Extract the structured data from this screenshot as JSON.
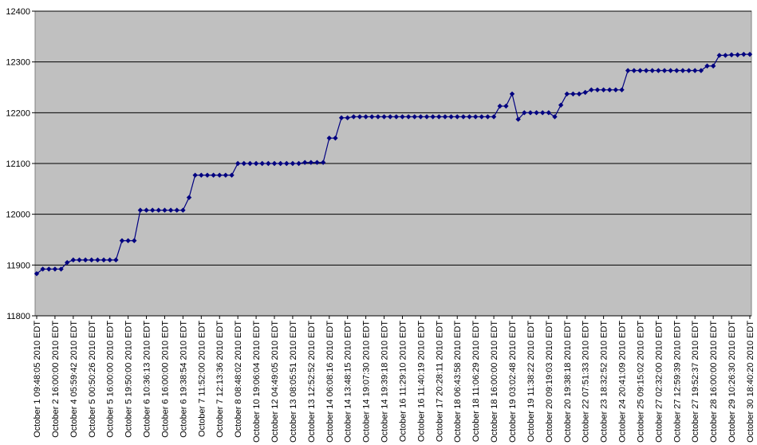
{
  "chart_data": {
    "type": "line",
    "categories": [
      "October 1 09:48:05 2010 EDT",
      null,
      null,
      "October 2 16:00:00 2010 EDT",
      null,
      null,
      "October 4 05:59:42 2010 EDT",
      null,
      null,
      "October 5 00:50:26 2010 EDT",
      null,
      null,
      "October 5 16:00:00 2010 EDT",
      null,
      null,
      "October 5 19:50:00 2010 EDT",
      null,
      null,
      "October 6 10:36:13 2010 EDT",
      null,
      null,
      "October 6 16:00:00 2010 EDT",
      null,
      null,
      "October 6 19:38:54 2010 EDT",
      null,
      null,
      "October 7 11:52:00 2010 EDT",
      null,
      null,
      "October 7 12:13:36 2010 EDT",
      null,
      null,
      "October 8 08:48:02 2010 EDT",
      null,
      null,
      "October 10 19:06:04 2010 EDT",
      null,
      null,
      "October 12 04:49:05 2010 EDT",
      null,
      null,
      "October 13 08:05:51 2010 EDT",
      null,
      null,
      "October 13 12:52:52 2010 EDT",
      null,
      null,
      "October 14 06:08:16 2010 EDT",
      null,
      null,
      "October 14 13:48:15 2010 EDT",
      null,
      null,
      "October 14 19:07:30 2010 EDT",
      null,
      null,
      "October 14 19:39:18 2010 EDT",
      null,
      null,
      "October 16 11:29:10 2010 EDT",
      null,
      null,
      "October 16 11:40:19 2010 EDT",
      null,
      null,
      "October 17 20:28:11 2010 EDT",
      null,
      null,
      "October 18 06:43:58 2010 EDT",
      null,
      null,
      "October 18 11:06:29 2010 EDT",
      null,
      null,
      "October 18 16:00:00 2010 EDT",
      null,
      null,
      "October 19 03:02:48 2010 EDT",
      null,
      null,
      "October 19 11:38:22 2010 EDT",
      null,
      null,
      "October 20 09:19:03 2010 EDT",
      null,
      null,
      "October 20 19:38:18 2010 EDT",
      null,
      null,
      "October 22 07:51:33 2010 EDT",
      null,
      null,
      "October 23 18:32:52 2010 EDT",
      null,
      null,
      "October 24 20:41:09 2010 EDT",
      null,
      null,
      "October 25 09:15:02 2010 EDT",
      null,
      null,
      "October 27 02:32:00 2010 EDT",
      null,
      null,
      "October 27 12:59:39 2010 EDT",
      null,
      null,
      "October 27 19:52:37 2010 EDT",
      null,
      null,
      "October 28 16:00:00 2010 EDT",
      null,
      null,
      "October 29 10:26:30 2010 EDT",
      null,
      null,
      "October 30 18:40:20 2010 EDT"
    ],
    "values": [
      11883,
      11892,
      11892,
      11892,
      11892,
      11905,
      11910,
      11910,
      11910,
      11910,
      11910,
      11910,
      11910,
      11910,
      11948,
      11948,
      11948,
      12008,
      12008,
      12008,
      12008,
      12008,
      12008,
      12008,
      12008,
      12033,
      12077,
      12077,
      12077,
      12077,
      12077,
      12077,
      12077,
      12100,
      12100,
      12100,
      12100,
      12100,
      12100,
      12100,
      12100,
      12100,
      12100,
      12100,
      12102,
      12102,
      12102,
      12102,
      12150,
      12150,
      12190,
      12190,
      12192,
      12192,
      12192,
      12192,
      12192,
      12192,
      12192,
      12192,
      12192,
      12192,
      12192,
      12192,
      12192,
      12192,
      12192,
      12192,
      12192,
      12192,
      12192,
      12192,
      12192,
      12192,
      12192,
      12192,
      12213,
      12213,
      12237,
      12187,
      12200,
      12200,
      12200,
      12200,
      12200,
      12192,
      12215,
      12237,
      12237,
      12237,
      12240,
      12245,
      12245,
      12245,
      12245,
      12245,
      12245,
      12283,
      12283,
      12283,
      12283,
      12283,
      12283,
      12283,
      12283,
      12283,
      12283,
      12283,
      12283,
      12283,
      12292,
      12292,
      12313,
      12313,
      12314,
      12314,
      12315,
      12315
    ],
    "color": "#000080",
    "plot_background": "#c0c0c0",
    "ylim": [
      11800,
      12400
    ],
    "yticks": [
      11800,
      11900,
      12000,
      12100,
      12200,
      12300,
      12400
    ],
    "grid": true
  }
}
